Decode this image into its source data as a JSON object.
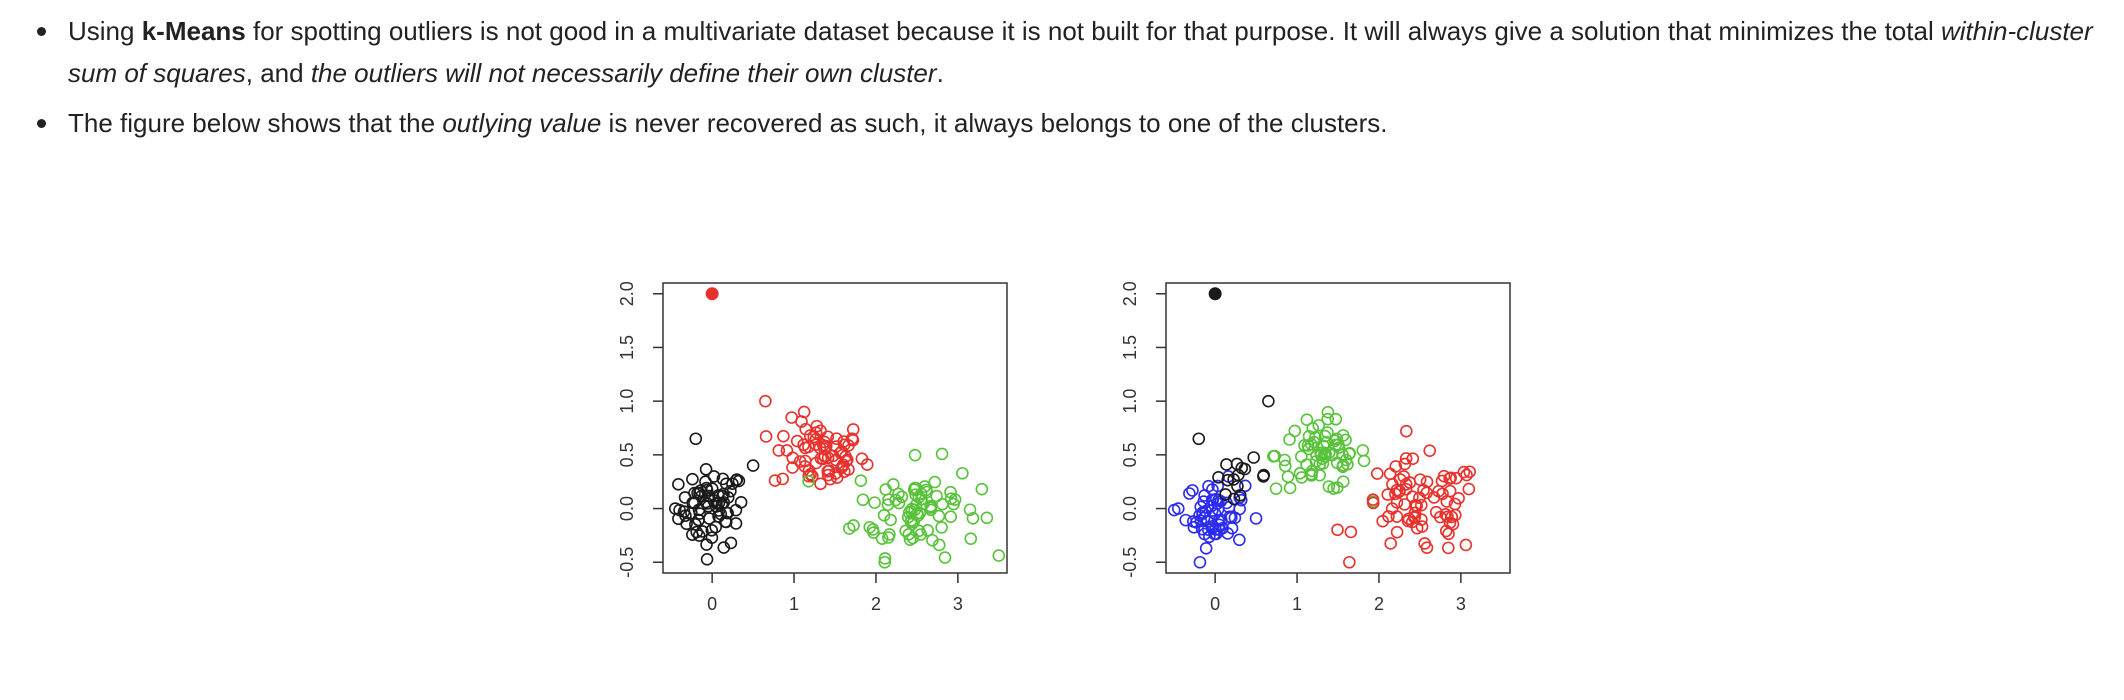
{
  "text": {
    "b1": {
      "p1": "Using ",
      "bold": "k-Means",
      "p2": " for spotting outliers is not good in a multivariate dataset because it is not built for that purpose. It will always give a solution that minimizes the total ",
      "it1": "within-cluster sum of squares",
      "p3": ", and ",
      "it2": "the outliers will not necessarily define their own cluster",
      "p4": "."
    },
    "b2": {
      "p1": "The figure below shows that the ",
      "it1": "outlying value",
      "p2": " is never recovered as such, it always belongs to one of the clusters."
    }
  },
  "colors": {
    "black": "#1a1a1a",
    "red": "#e8312c",
    "green": "#58c33a",
    "blue": "#2b2bf0"
  },
  "chart_data": [
    {
      "type": "scatter",
      "xlim": [
        -0.6,
        3.6
      ],
      "ylim": [
        -0.6,
        2.1
      ],
      "xticks": [
        "0",
        "1",
        "2",
        "3"
      ],
      "yticks": [
        "-0.5",
        "0.0",
        "0.5",
        "1.0",
        "1.5",
        "2.0"
      ],
      "grid": false,
      "outlier": {
        "x": 0.0,
        "y": 2.0,
        "color": "red",
        "filled": true
      },
      "clusters": [
        {
          "color": "black",
          "center": [
            0.0,
            0.0
          ],
          "spread": [
            0.2,
            0.18
          ],
          "n": 70
        },
        {
          "color": "red",
          "center": [
            1.3,
            0.5
          ],
          "spread": [
            0.28,
            0.16
          ],
          "n": 70
        },
        {
          "color": "green",
          "center": [
            2.5,
            0.0
          ],
          "spread": [
            0.38,
            0.22
          ],
          "n": 80
        }
      ],
      "extra_points": [
        {
          "x": 0.65,
          "y": 1.0,
          "color": "red"
        },
        {
          "x": -0.2,
          "y": 0.65,
          "color": "black"
        },
        {
          "x": 0.5,
          "y": 0.4,
          "color": "black"
        },
        {
          "x": -0.45,
          "y": 0.0,
          "color": "black"
        }
      ]
    },
    {
      "type": "scatter",
      "xlim": [
        -0.6,
        3.6
      ],
      "ylim": [
        -0.6,
        2.1
      ],
      "xticks": [
        "0",
        "1",
        "2",
        "3"
      ],
      "yticks": [
        "-0.5",
        "0.0",
        "0.5",
        "1.0",
        "1.5",
        "2.0"
      ],
      "grid": false,
      "outlier": {
        "x": 0.0,
        "y": 2.0,
        "color": "black",
        "filled": true
      },
      "clusters": [
        {
          "color": "blue",
          "center": [
            0.0,
            -0.05
          ],
          "spread": [
            0.18,
            0.15
          ],
          "n": 60
        },
        {
          "color": "black",
          "center": [
            0.3,
            0.3
          ],
          "spread": [
            0.18,
            0.08
          ],
          "n": 15
        },
        {
          "color": "green",
          "center": [
            1.3,
            0.5
          ],
          "spread": [
            0.28,
            0.17
          ],
          "n": 70
        },
        {
          "color": "red",
          "center": [
            2.5,
            0.0
          ],
          "spread": [
            0.38,
            0.22
          ],
          "n": 80
        }
      ],
      "extra_points": [
        {
          "x": 0.65,
          "y": 1.0,
          "color": "black"
        },
        {
          "x": -0.2,
          "y": 0.65,
          "color": "black"
        },
        {
          "x": -0.45,
          "y": 0.0,
          "color": "blue"
        }
      ]
    }
  ]
}
